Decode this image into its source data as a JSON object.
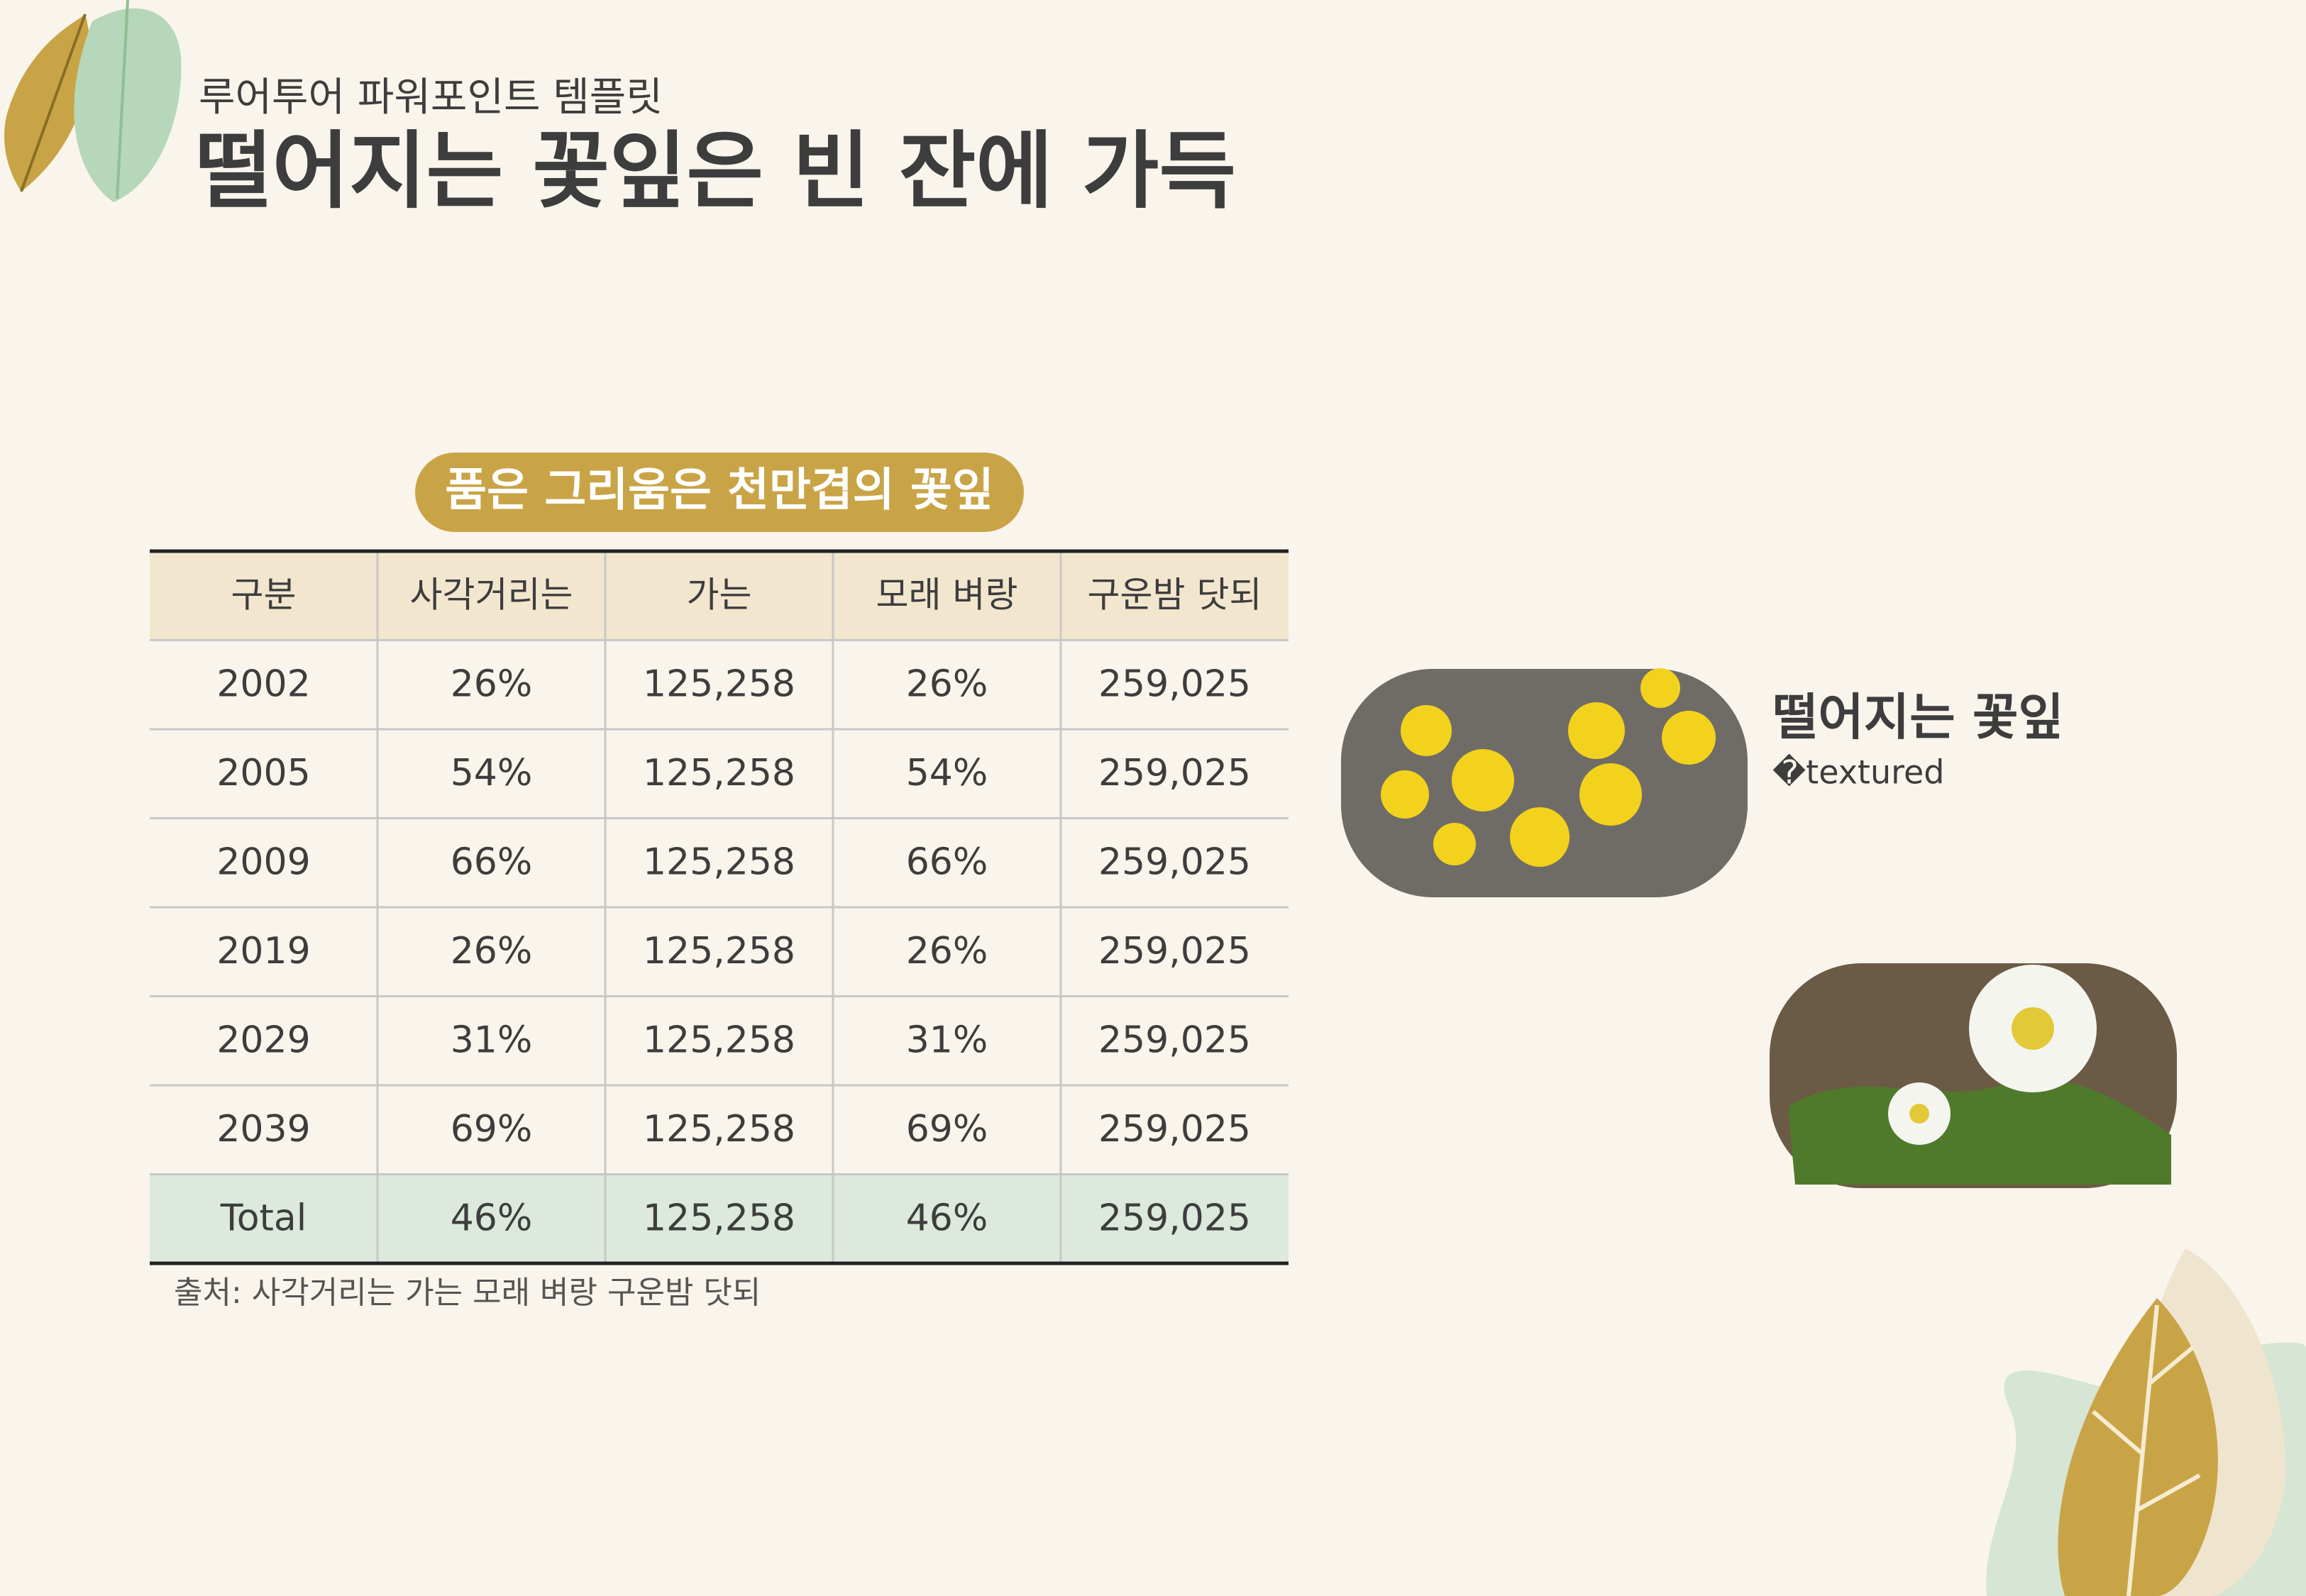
{
  "header": {
    "subtitle": "루어투어 파워포인트 템플릿",
    "title": "떨어지는 꽃잎은 빈 잔에 가득"
  },
  "table": {
    "caption": "품은 그리움은 천만겹의 꽃잎",
    "columns": [
      "구분",
      "사각거리는",
      "가는",
      "모래 벼랑",
      "구운밤 닷되"
    ],
    "rows": [
      [
        "2002",
        "26%",
        "125,258",
        "26%",
        "259,025"
      ],
      [
        "2005",
        "54%",
        "125,258",
        "54%",
        "259,025"
      ],
      [
        "2009",
        "66%",
        "125,258",
        "66%",
        "259,025"
      ],
      [
        "2019",
        "26%",
        "125,258",
        "26%",
        "259,025"
      ],
      [
        "2029",
        "31%",
        "125,258",
        "31%",
        "259,025"
      ],
      [
        "2039",
        "69%",
        "125,258",
        "69%",
        "259,025"
      ],
      [
        "Total",
        "46%",
        "125,258",
        "46%",
        "259,025"
      ]
    ],
    "source": "출처: 사각거리는 가는 모래 벼랑 구운밤 닷되"
  },
  "cards": [
    {
      "title": "떨어지는 꽃잎",
      "lines": [
        "�textured"
      ]
    }
  ]
}
